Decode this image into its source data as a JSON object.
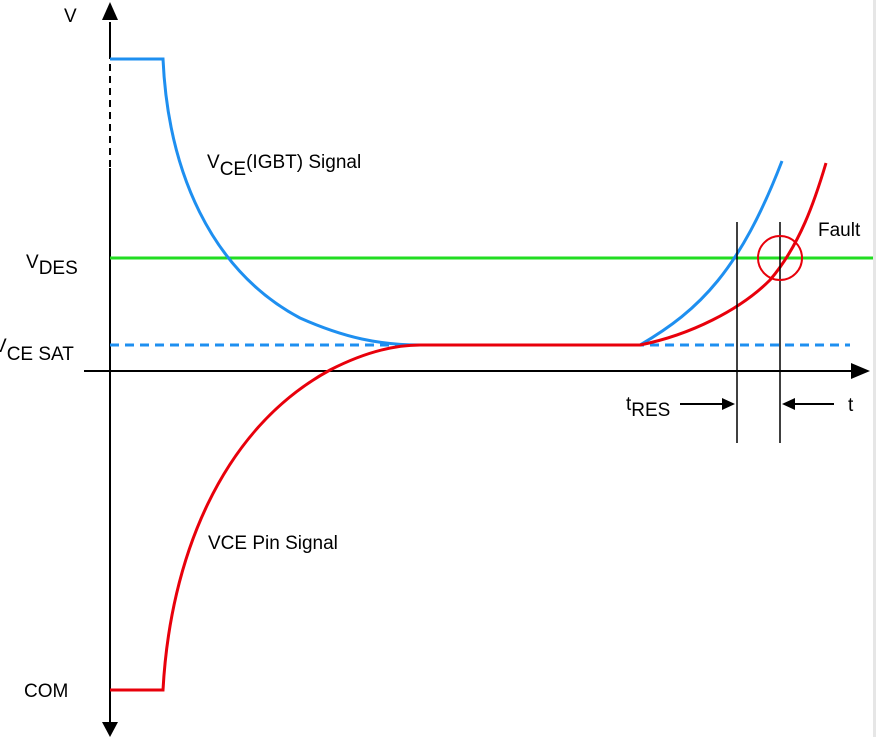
{
  "axes": {
    "y_label": "V",
    "x_label": "t"
  },
  "levels": {
    "vdes": {
      "main": "V",
      "sub": "DES"
    },
    "vcesat": {
      "main": "V",
      "sub": "CE SAT"
    },
    "com": "COM"
  },
  "curves": {
    "igbt": {
      "main": "V",
      "sub": "CE",
      "rest": "(IGBT) Signal"
    },
    "pin": "VCE Pin Signal"
  },
  "annotations": {
    "fault": "Fault",
    "tres": {
      "main": "t",
      "sub": "RES"
    }
  },
  "colors": {
    "igbt_signal": "#1e8ff0",
    "pin_signal": "#e8000b",
    "vdes_line": "#22dd22",
    "vcesat_line": "#1e8ff0",
    "fault_circle": "#e8000b",
    "axes": "#000000"
  }
}
